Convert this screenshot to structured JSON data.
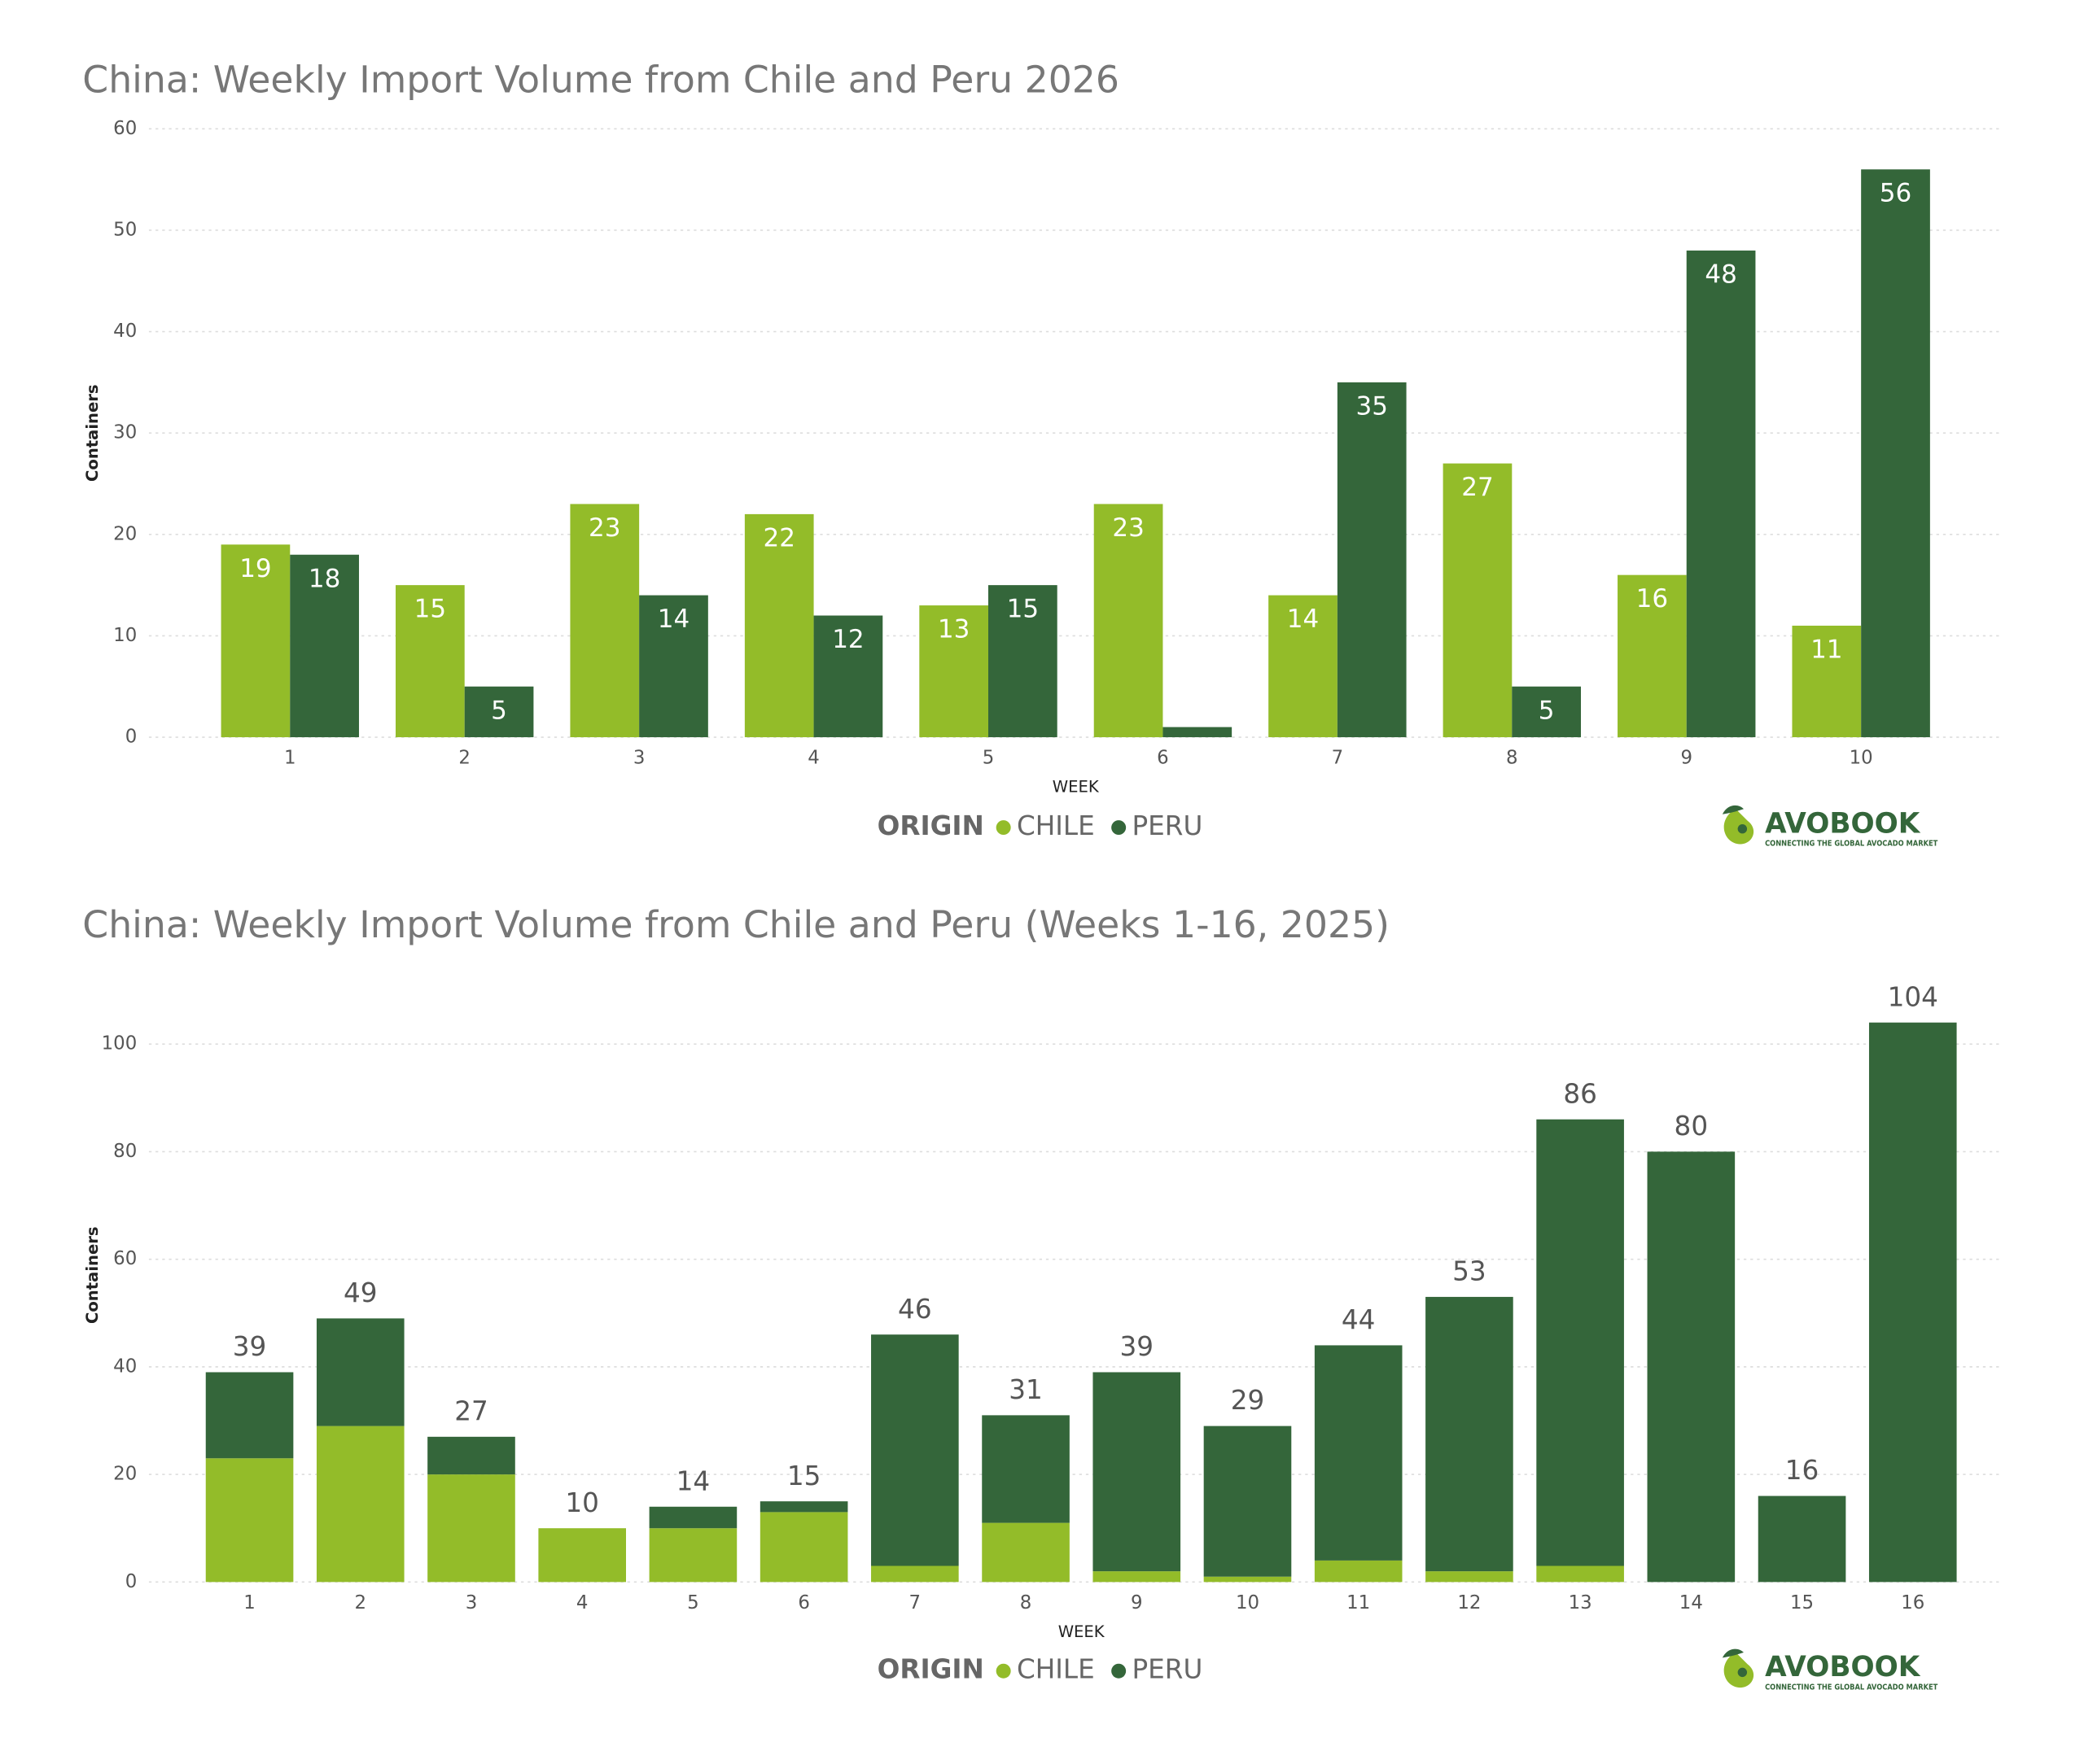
{
  "chart_data": [
    {
      "type": "bar",
      "title": "China: Weekly Import Volume from Chile and Peru 2026",
      "x_label": "WEEK",
      "y_label": "Containers",
      "legend_title": "ORIGIN",
      "categories": [
        "1",
        "2",
        "3",
        "4",
        "5",
        "6",
        "7",
        "8",
        "9",
        "10"
      ],
      "series": [
        {
          "name": "CHILE",
          "color": "#93bc29",
          "values": [
            19,
            15,
            23,
            22,
            13,
            23,
            14,
            27,
            16,
            11
          ]
        },
        {
          "name": "PERU",
          "color": "#34663a",
          "values": [
            18,
            5,
            14,
            12,
            15,
            1,
            35,
            5,
            48,
            56
          ]
        }
      ],
      "ylim": [
        0,
        60
      ],
      "yticks": [
        0,
        10,
        20,
        30,
        40,
        50,
        60
      ],
      "grid": true
    },
    {
      "type": "stacked_bar",
      "title": "China: Weekly Import Volume from Chile and Peru (Weeks 1-16, 2025)",
      "x_label": "WEEK",
      "y_label": "Containers",
      "legend_title": "ORIGIN",
      "categories": [
        "1",
        "2",
        "3",
        "4",
        "5",
        "6",
        "7",
        "8",
        "9",
        "10",
        "11",
        "12",
        "13",
        "14",
        "15",
        "16"
      ],
      "series": [
        {
          "name": "CHILE",
          "color": "#93bc29",
          "values": [
            23,
            29,
            20,
            10,
            10,
            13,
            3,
            11,
            2,
            1,
            4,
            2,
            3,
            0,
            0,
            0
          ]
        },
        {
          "name": "PERU",
          "color": "#34663a",
          "values": [
            16,
            20,
            7,
            0,
            4,
            2,
            43,
            20,
            37,
            28,
            40,
            51,
            83,
            80,
            16,
            104
          ]
        }
      ],
      "totals": [
        39,
        49,
        27,
        10,
        14,
        15,
        46,
        31,
        39,
        29,
        44,
        53,
        86,
        80,
        16,
        104
      ],
      "ylim": [
        0,
        110
      ],
      "yticks": [
        0,
        20,
        40,
        60,
        80,
        100
      ],
      "grid": true
    }
  ],
  "logo": {
    "name": "AVOBOOK",
    "tagline": "CONNECTING THE GLOBAL AVOCADO MARKET"
  }
}
